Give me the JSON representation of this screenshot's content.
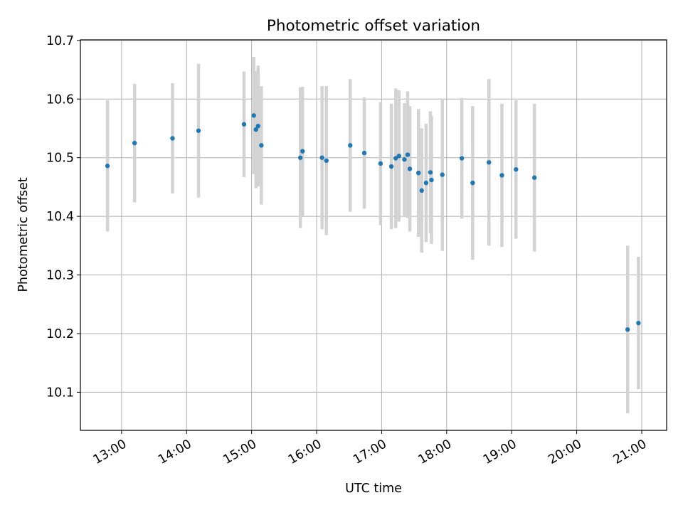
{
  "chart_data": {
    "type": "scatter",
    "title": "Photometric offset variation",
    "xlabel": "UTC time",
    "ylabel": "Photometric offset",
    "xlim": [
      "12:22",
      "21:23"
    ],
    "ylim": [
      10.035,
      10.701
    ],
    "x_ticks": [
      "13:00",
      "14:00",
      "15:00",
      "16:00",
      "17:00",
      "18:00",
      "19:00",
      "20:00",
      "21:00"
    ],
    "y_ticks": [
      "10.1",
      "10.2",
      "10.3",
      "10.4",
      "10.5",
      "10.6",
      "10.7"
    ],
    "grid": true,
    "legend": "none",
    "marker_color": "#1f77b4",
    "errorbar_color": "#d3d3d3",
    "series": [
      {
        "points": [
          {
            "x": "12:47",
            "y": 10.486,
            "yerr": 0.112
          },
          {
            "x": "13:12",
            "y": 10.525,
            "yerr": 0.101
          },
          {
            "x": "13:47",
            "y": 10.533,
            "yerr": 0.094
          },
          {
            "x": "14:11",
            "y": 10.546,
            "yerr": 0.114
          },
          {
            "x": "14:53",
            "y": 10.557,
            "yerr": 0.09
          },
          {
            "x": "15:02",
            "y": 10.572,
            "yerr": 0.1
          },
          {
            "x": "15:04",
            "y": 10.548,
            "yerr": 0.1
          },
          {
            "x": "15:06",
            "y": 10.554,
            "yerr": 0.103
          },
          {
            "x": "15:09",
            "y": 10.521,
            "yerr": 0.101
          },
          {
            "x": "15:45",
            "y": 10.5,
            "yerr": 0.12
          },
          {
            "x": "15:47",
            "y": 10.511,
            "yerr": 0.11
          },
          {
            "x": "16:05",
            "y": 10.5,
            "yerr": 0.122
          },
          {
            "x": "16:09",
            "y": 10.495,
            "yerr": 0.127
          },
          {
            "x": "16:31",
            "y": 10.521,
            "yerr": 0.113
          },
          {
            "x": "16:44",
            "y": 10.508,
            "yerr": 0.095
          },
          {
            "x": "16:59",
            "y": 10.49,
            "yerr": 0.105
          },
          {
            "x": "17:09",
            "y": 10.485,
            "yerr": 0.107
          },
          {
            "x": "17:13",
            "y": 10.499,
            "yerr": 0.119
          },
          {
            "x": "17:16",
            "y": 10.503,
            "yerr": 0.112
          },
          {
            "x": "17:21",
            "y": 10.497,
            "yerr": 0.096
          },
          {
            "x": "17:24",
            "y": 10.505,
            "yerr": 0.108
          },
          {
            "x": "17:26",
            "y": 10.481,
            "yerr": 0.107
          },
          {
            "x": "17:34",
            "y": 10.474,
            "yerr": 0.109
          },
          {
            "x": "17:37",
            "y": 10.444,
            "yerr": 0.106
          },
          {
            "x": "17:41",
            "y": 10.457,
            "yerr": 0.101
          },
          {
            "x": "17:45",
            "y": 10.475,
            "yerr": 0.104
          },
          {
            "x": "17:46",
            "y": 10.462,
            "yerr": 0.109
          },
          {
            "x": "17:56",
            "y": 10.471,
            "yerr": 0.13
          },
          {
            "x": "18:14",
            "y": 10.499,
            "yerr": 0.103
          },
          {
            "x": "18:24",
            "y": 10.457,
            "yerr": 0.131
          },
          {
            "x": "18:39",
            "y": 10.492,
            "yerr": 0.142
          },
          {
            "x": "18:51",
            "y": 10.47,
            "yerr": 0.122
          },
          {
            "x": "19:04",
            "y": 10.48,
            "yerr": 0.118
          },
          {
            "x": "19:21",
            "y": 10.466,
            "yerr": 0.126
          },
          {
            "x": "20:47",
            "y": 10.207,
            "yerr": 0.143
          },
          {
            "x": "20:57",
            "y": 10.218,
            "yerr": 0.113
          }
        ]
      }
    ]
  }
}
